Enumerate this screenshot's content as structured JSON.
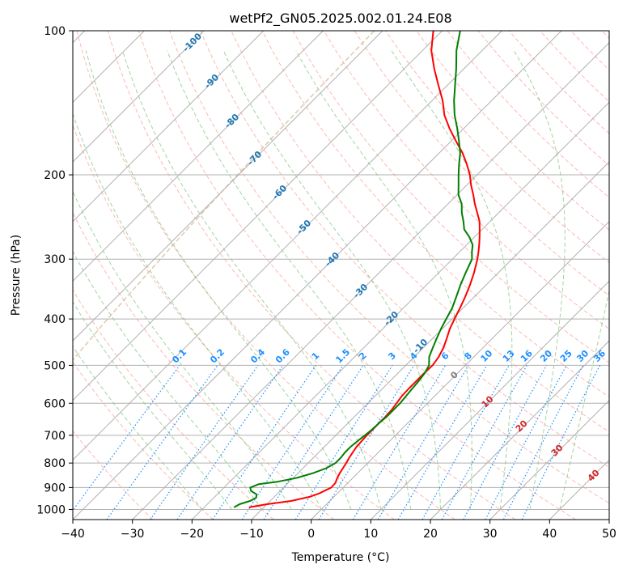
{
  "chart_data": {
    "type": "line",
    "title": "wetPf2_GN05.2025.002.01.24.E08",
    "xlabel": "Temperature (°C)",
    "ylabel": "Pressure (hPa)",
    "xlim": [
      -40,
      50
    ],
    "ylim": [
      1050,
      100
    ],
    "y_scale": "log",
    "grid": true,
    "x_ticks": [
      -40,
      -30,
      -20,
      -10,
      0,
      10,
      20,
      30,
      40,
      50
    ],
    "x_tick_labels": [
      "−40",
      "−30",
      "−20",
      "−10",
      "0",
      "10",
      "20",
      "30",
      "40",
      "50"
    ],
    "y_ticks": [
      1000,
      900,
      800,
      700,
      600,
      500,
      400,
      300,
      200,
      100
    ],
    "y_tick_labels": [
      "1000",
      "900",
      "800",
      "700",
      "600",
      "500",
      "400",
      "300",
      "200",
      "100"
    ],
    "skew": 1.0,
    "series": [
      {
        "color": "#ff0000",
        "p": [
          990,
          975,
          960,
          940,
          925,
          910,
          900,
          880,
          860,
          840,
          820,
          800,
          780,
          760,
          740,
          720,
          700,
          680,
          660,
          640,
          620,
          600,
          580,
          560,
          540,
          520,
          500,
          480,
          460,
          440,
          420,
          400,
          380,
          360,
          340,
          320,
          300,
          290,
          280,
          270,
          260,
          250,
          240,
          230,
          220,
          210,
          200,
          190,
          180,
          170,
          160,
          150,
          140,
          130,
          120,
          110,
          100
        ],
        "t": [
          -12.5,
          -10.0,
          -6.5,
          -4.0,
          -3.0,
          -2.4,
          -2.0,
          -2.1,
          -2.6,
          -3.0,
          -3.3,
          -3.6,
          -4.0,
          -4.3,
          -4.6,
          -4.7,
          -4.8,
          -4.8,
          -4.8,
          -4.8,
          -4.9,
          -5.2,
          -5.5,
          -5.6,
          -5.6,
          -5.6,
          -5.5,
          -5.9,
          -6.6,
          -7.6,
          -8.7,
          -9.6,
          -10.5,
          -11.5,
          -12.7,
          -14.1,
          -15.8,
          -16.8,
          -17.9,
          -19.1,
          -20.4,
          -21.8,
          -23.6,
          -25.5,
          -27.3,
          -29.3,
          -31.2,
          -33.5,
          -36.1,
          -39.2,
          -42.4,
          -45.5,
          -48.2,
          -51.5,
          -55.0,
          -58.5,
          -61.5
        ]
      },
      {
        "color": "#008000",
        "p": [
          990,
          975,
          960,
          945,
          930,
          915,
          900,
          885,
          875,
          860,
          840,
          820,
          800,
          780,
          760,
          740,
          720,
          700,
          680,
          660,
          640,
          620,
          600,
          580,
          560,
          540,
          520,
          500,
          480,
          460,
          440,
          420,
          400,
          380,
          360,
          340,
          320,
          300,
          290,
          280,
          270,
          260,
          250,
          240,
          230,
          220,
          210,
          200,
          190,
          180,
          170,
          160,
          150,
          140,
          130,
          120,
          110,
          100
        ],
        "t": [
          -15.0,
          -14.6,
          -13.4,
          -12.9,
          -13.4,
          -14.9,
          -15.6,
          -14.7,
          -12.0,
          -9.5,
          -7.5,
          -6.1,
          -5.4,
          -5.4,
          -5.6,
          -5.6,
          -5.4,
          -5.1,
          -4.9,
          -4.8,
          -4.6,
          -4.6,
          -4.6,
          -4.8,
          -5.0,
          -5.2,
          -5.5,
          -6.1,
          -7.5,
          -8.4,
          -9.3,
          -10.2,
          -11.0,
          -11.8,
          -13.0,
          -14.3,
          -15.5,
          -16.7,
          -17.9,
          -19.0,
          -20.8,
          -23.0,
          -24.5,
          -26.2,
          -27.7,
          -29.8,
          -31.4,
          -33.1,
          -34.8,
          -36.5,
          -38.7,
          -41.1,
          -43.8,
          -46.3,
          -48.7,
          -51.3,
          -54.3,
          -57.0
        ]
      }
    ],
    "isotherm_labels": [
      "-100",
      "-90",
      "-80",
      "-70",
      "-60",
      "-50",
      "-40",
      "-30",
      "-20",
      "-10"
    ],
    "mixing_ratio_labels": [
      "0.1",
      "0.2",
      "0.4",
      "0.6",
      "1",
      "1.5",
      "2",
      "3",
      "4",
      "6",
      "8",
      "10",
      "13",
      "16",
      "20",
      "25",
      "30",
      "36"
    ],
    "red_labels": [
      "10",
      "20",
      "30",
      "40"
    ],
    "gray_label": "0",
    "colors": {
      "temperature": "#ff0000",
      "dewpoint": "#008000",
      "isotherm_label": "#1f77b4",
      "mixing_ratio": "#1e90ff",
      "dry_adiabat": "#fa8072",
      "moist_adiabat": "#2ca02c",
      "grid": "#b0b0b0"
    }
  }
}
